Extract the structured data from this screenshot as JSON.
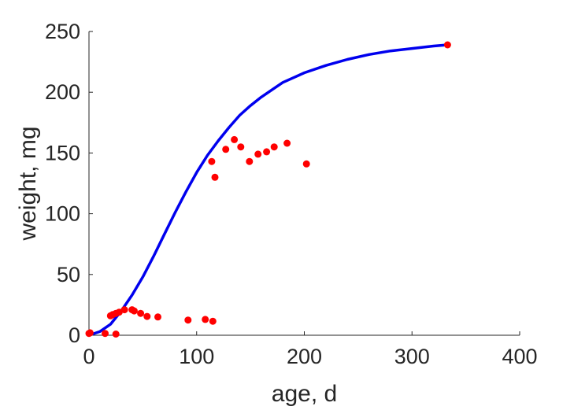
{
  "chart_data": {
    "type": "scatter",
    "title": "",
    "xlabel": "age, d",
    "ylabel": "weight, mg",
    "xlim": [
      0,
      400
    ],
    "ylim": [
      0,
      250
    ],
    "x_ticks": [
      "0",
      "100",
      "200",
      "300",
      "400"
    ],
    "y_ticks": [
      "0",
      "50",
      "100",
      "150",
      "200",
      "250"
    ],
    "grid": false,
    "legend": "none",
    "series": [
      {
        "kind": "points",
        "color": "#ff0000",
        "points": [
          [
            0,
            1.5
          ],
          [
            1,
            2
          ],
          [
            15,
            1.5
          ],
          [
            25,
            1
          ],
          [
            20,
            16
          ],
          [
            22,
            17
          ],
          [
            25,
            18
          ],
          [
            28,
            19
          ],
          [
            33,
            21
          ],
          [
            40,
            21
          ],
          [
            42,
            20
          ],
          [
            48,
            18
          ],
          [
            54,
            15.5
          ],
          [
            64,
            15
          ],
          [
            92,
            12.5
          ],
          [
            108,
            13
          ],
          [
            115,
            11.5
          ],
          [
            114,
            143
          ],
          [
            117,
            130
          ],
          [
            127,
            153
          ],
          [
            135,
            161
          ],
          [
            141,
            155
          ],
          [
            149,
            143
          ],
          [
            157,
            149
          ],
          [
            165,
            151
          ],
          [
            172,
            155
          ],
          [
            184,
            158
          ],
          [
            202,
            141
          ],
          [
            333,
            239
          ]
        ]
      },
      {
        "kind": "curve",
        "color": "#0000ee",
        "points": [
          [
            0,
            0
          ],
          [
            10,
            3
          ],
          [
            20,
            9
          ],
          [
            30,
            20
          ],
          [
            40,
            33
          ],
          [
            50,
            48
          ],
          [
            60,
            65
          ],
          [
            70,
            83
          ],
          [
            80,
            101
          ],
          [
            90,
            118
          ],
          [
            100,
            134
          ],
          [
            110,
            148
          ],
          [
            120,
            160
          ],
          [
            130,
            171
          ],
          [
            140,
            181
          ],
          [
            150,
            189
          ],
          [
            160,
            196
          ],
          [
            170,
            202
          ],
          [
            180,
            208
          ],
          [
            190,
            212
          ],
          [
            200,
            216
          ],
          [
            220,
            222
          ],
          [
            240,
            227
          ],
          [
            260,
            231
          ],
          [
            280,
            234
          ],
          [
            300,
            236
          ],
          [
            320,
            238
          ],
          [
            333,
            239
          ]
        ]
      }
    ]
  }
}
